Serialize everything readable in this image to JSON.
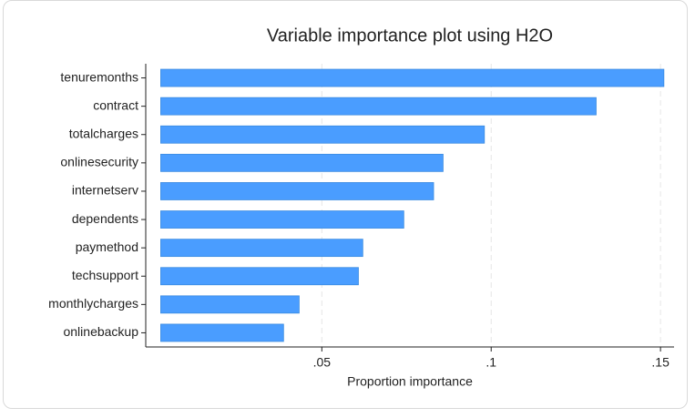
{
  "chart_data": {
    "type": "bar",
    "orientation": "horizontal",
    "title": "Variable importance plot using H2O",
    "x_label": "Proportion importance",
    "categories": [
      "tenuremonths",
      "contract",
      "totalcharges",
      "onlinesecurity",
      "internetserv",
      "dependents",
      "paymethod",
      "techsupport",
      "monthlycharges",
      "onlinebackup"
    ],
    "values": [
      0.151,
      0.131,
      0.098,
      0.0858,
      0.083,
      0.0742,
      0.0621,
      0.0608,
      0.0433,
      0.0387
    ],
    "color": "#4a9dff",
    "xlim": [
      -0.002,
      0.154
    ],
    "xticks": [
      {
        "value": 0.05,
        "label": ".05"
      },
      {
        "value": 0.1,
        "label": ".1"
      },
      {
        "value": 0.15,
        "label": ".15"
      }
    ],
    "grid": true
  }
}
